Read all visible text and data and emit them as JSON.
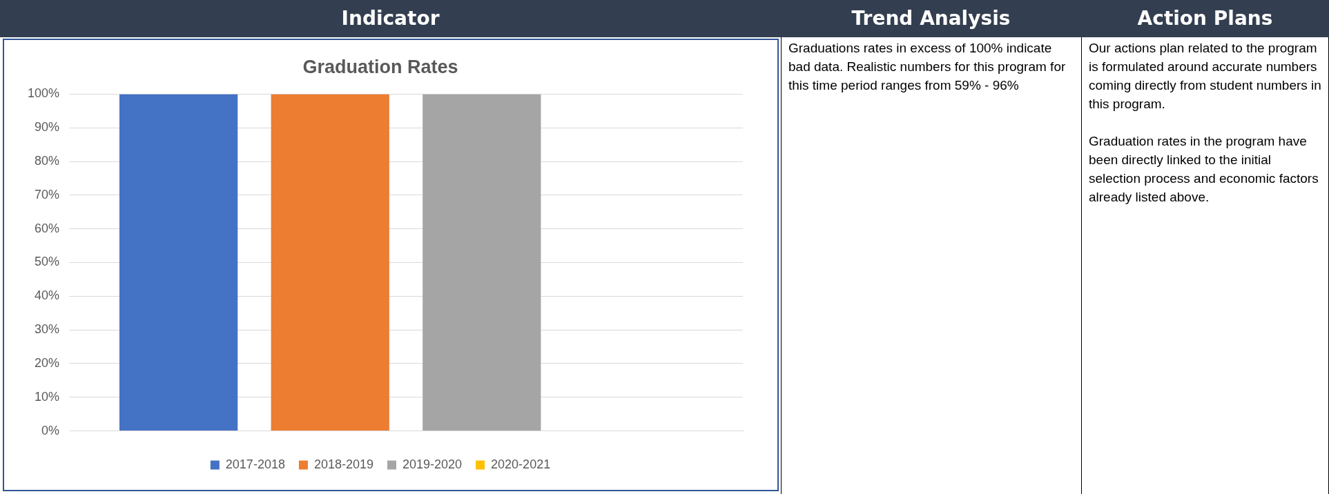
{
  "chart_data": {
    "type": "bar",
    "title": "Graduation Rates",
    "categories": [
      null
    ],
    "series": [
      {
        "name": "2017-2018",
        "color": "#4472c4",
        "values": [
          100
        ]
      },
      {
        "name": "2018-2019",
        "color": "#ed7d31",
        "values": [
          100
        ]
      },
      {
        "name": "2019-2020",
        "color": "#a5a5a5",
        "values": [
          100
        ]
      },
      {
        "name": "2020-2021",
        "color": "#ffc000",
        "values": [
          null
        ]
      }
    ],
    "ylim": [
      0,
      100
    ],
    "yticks": [
      {
        "value": 0,
        "label": "0%"
      },
      {
        "value": 10,
        "label": "10%"
      },
      {
        "value": 20,
        "label": "20%"
      },
      {
        "value": 30,
        "label": "30%"
      },
      {
        "value": 40,
        "label": "40%"
      },
      {
        "value": 50,
        "label": "50%"
      },
      {
        "value": 60,
        "label": "60%"
      },
      {
        "value": 70,
        "label": "70%"
      },
      {
        "value": 80,
        "label": "80%"
      },
      {
        "value": 90,
        "label": "90%"
      },
      {
        "value": 100,
        "label": "100%"
      }
    ],
    "grid": "y",
    "legend": "bottom",
    "annotations": [
      "Indicator",
      "Trend Analysis",
      "Action Plans",
      "Graduations rates in excess of 100% indicate bad data.  Realistic numbers for this program for this time period ranges from 59% - 96%",
      "Our actions plan related to the program is formulated around accurate numbers coming directly from student numbers in this program.",
      "Graduation rates in the program have been directly linked to the initial selection process and economic factors already listed above."
    ]
  }
}
